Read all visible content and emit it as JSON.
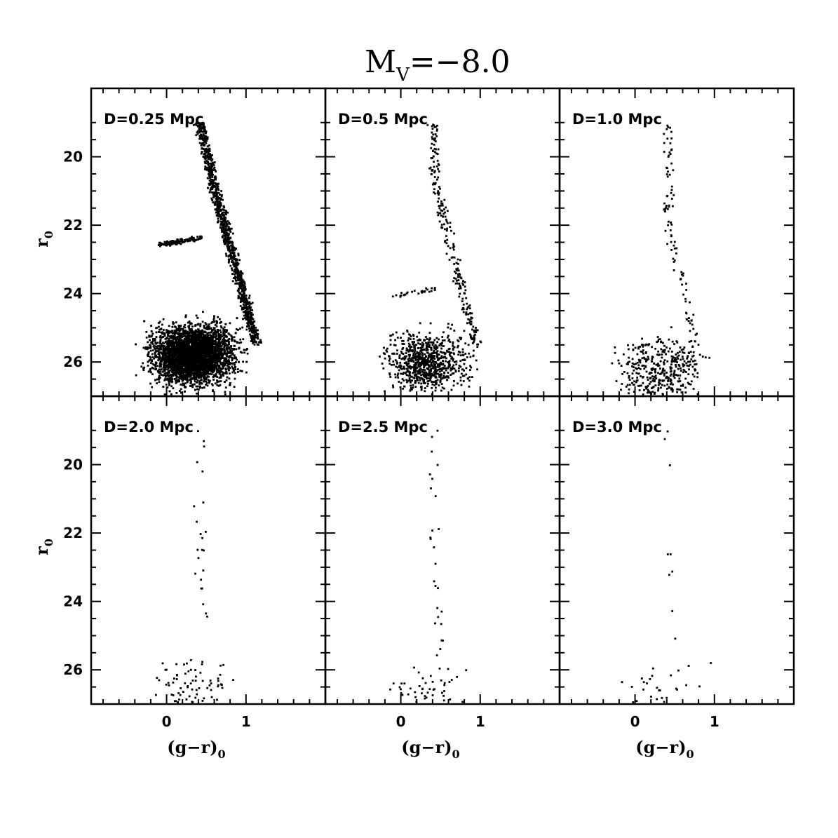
{
  "figure": {
    "title_main": "M",
    "title_sub": "V",
    "title_rest": "=−8.0"
  },
  "axes": {
    "xlabel_main": "(g−r)",
    "xlabel_sub": "0",
    "ylabel_main": "r",
    "ylabel_sub": "0",
    "x_ticks": [
      0,
      1
    ],
    "y_ticks": [
      20,
      22,
      24,
      26
    ]
  },
  "chart_data": {
    "type": "scatter",
    "xlim": [
      -0.95,
      2.0
    ],
    "ylim": [
      27.0,
      18.0
    ],
    "xlabel": "(g−r)0",
    "ylabel": "r0",
    "grid": false,
    "panels": [
      {
        "label": "D=0.25 Mpc",
        "distance_mpc": 0.25,
        "approx_points": 6000
      },
      {
        "label": "D=0.5 Mpc",
        "distance_mpc": 0.5,
        "approx_points": 1100
      },
      {
        "label": "D=1.0 Mpc",
        "distance_mpc": 1.0,
        "approx_points": 500
      },
      {
        "label": "D=2.0 Mpc",
        "distance_mpc": 2.0,
        "approx_points": 110
      },
      {
        "label": "D=2.5 Mpc",
        "distance_mpc": 2.5,
        "approx_points": 80
      },
      {
        "label": "D=3.0 Mpc",
        "distance_mpc": 3.0,
        "approx_points": 45
      }
    ],
    "series_features": {
      "red_giant_branch": {
        "color_range": [
          0.3,
          1.25
        ],
        "mag_range": [
          19.0,
          25.5
        ]
      },
      "horizontal_branch": {
        "color_range": [
          -0.1,
          0.45
        ],
        "mag_range": [
          22.3,
          22.6
        ],
        "note_shift_per_distance": "fainter with D"
      },
      "faint_limit": 26.5
    }
  }
}
